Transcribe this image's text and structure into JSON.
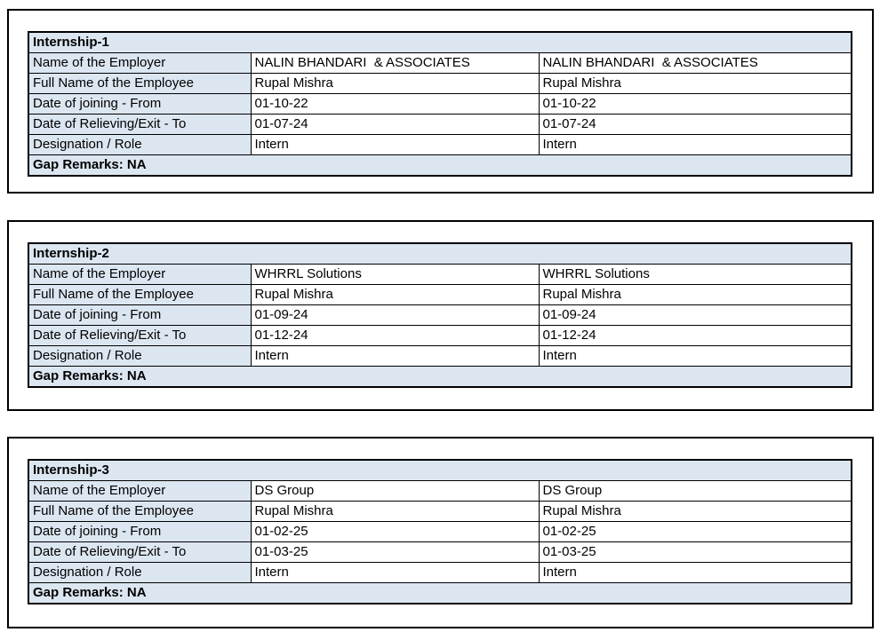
{
  "styles": {
    "header_fill": "#dce6f1",
    "border_color": "#000000",
    "text_color": "#000000",
    "page_background": "#ffffff"
  },
  "tables": [
    {
      "title": "Internship-1",
      "rows": [
        {
          "label": "Name of the Employer",
          "value1": "NALIN BHANDARI  & ASSOCIATES",
          "value2": "NALIN BHANDARI  & ASSOCIATES"
        },
        {
          "label": "Full Name of the Employee",
          "value1": "Rupal Mishra",
          "value2": "Rupal Mishra"
        },
        {
          "label": "Date of joining - From",
          "value1": "01-10-22",
          "value2": "01-10-22"
        },
        {
          "label": "Date of Relieving/Exit - To",
          "value1": "01-07-24",
          "value2": "01-07-24"
        },
        {
          "label": "Designation / Role",
          "value1": "Intern",
          "value2": "Intern"
        }
      ],
      "gap_remarks": "Gap Remarks: NA"
    },
    {
      "title": "Internship-2",
      "rows": [
        {
          "label": "Name of the Employer",
          "value1": "WHRRL Solutions",
          "value2": "WHRRL Solutions"
        },
        {
          "label": "Full Name of the Employee",
          "value1": "Rupal Mishra",
          "value2": "Rupal Mishra"
        },
        {
          "label": "Date of joining - From",
          "value1": "01-09-24",
          "value2": "01-09-24"
        },
        {
          "label": "Date of Relieving/Exit - To",
          "value1": "01-12-24",
          "value2": "01-12-24"
        },
        {
          "label": "Designation / Role",
          "value1": "Intern",
          "value2": "Intern"
        }
      ],
      "gap_remarks": "Gap Remarks: NA"
    },
    {
      "title": "Internship-3",
      "rows": [
        {
          "label": "Name of the Employer",
          "value1": "DS Group",
          "value2": "DS Group"
        },
        {
          "label": "Full Name of the Employee",
          "value1": "Rupal Mishra",
          "value2": "Rupal Mishra"
        },
        {
          "label": "Date of joining - From",
          "value1": "01-02-25",
          "value2": "01-02-25"
        },
        {
          "label": "Date of Relieving/Exit - To",
          "value1": "01-03-25",
          "value2": "01-03-25"
        },
        {
          "label": "Designation / Role",
          "value1": "Intern",
          "value2": "Intern"
        }
      ],
      "gap_remarks": "Gap Remarks: NA"
    }
  ]
}
